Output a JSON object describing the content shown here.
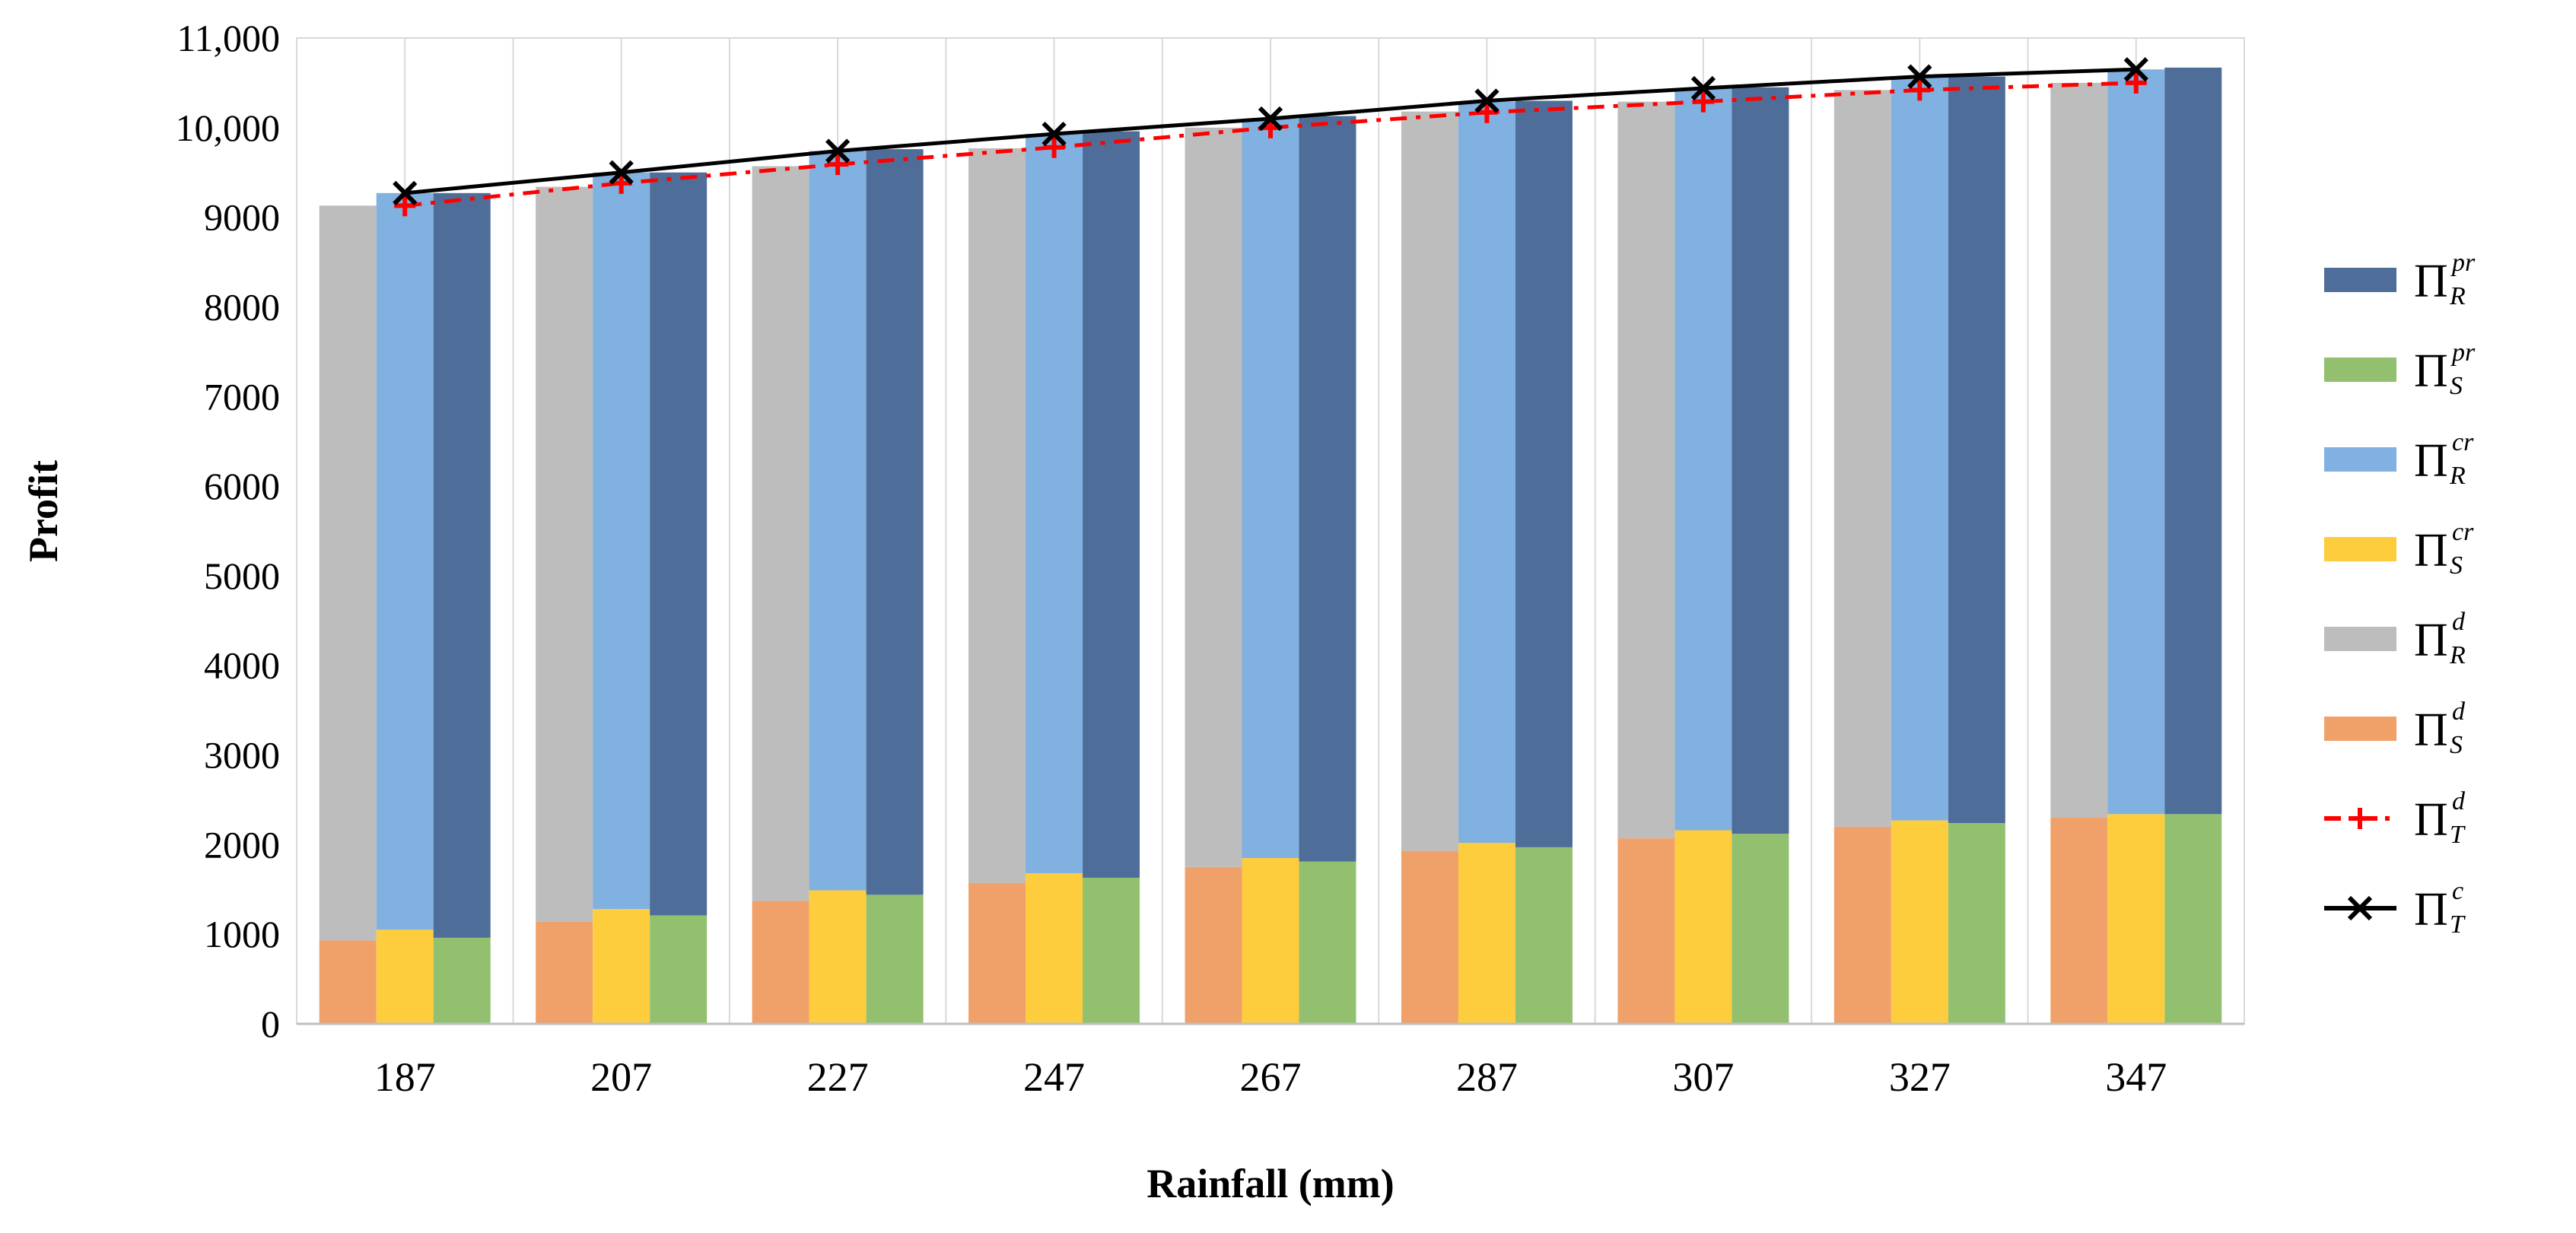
{
  "chart_data": {
    "type": "bar",
    "title": "",
    "xlabel": "Rainfall (mm)",
    "ylabel": "Profit",
    "ylim": [
      0,
      11000
    ],
    "yticks": [
      "0",
      "1000",
      "2000",
      "3000",
      "4000",
      "5000",
      "6000",
      "7000",
      "8000",
      "9000",
      "10,000",
      "11,000"
    ],
    "ytick_values": [
      0,
      1000,
      2000,
      3000,
      4000,
      5000,
      6000,
      7000,
      8000,
      9000,
      10000,
      11000
    ],
    "categories": [
      "187",
      "207",
      "227",
      "247",
      "267",
      "287",
      "307",
      "327",
      "347"
    ],
    "grid": "vertical gridlines at every half category",
    "legend_position": "right",
    "stacked_groups": [
      {
        "name": "d",
        "segments": [
          {
            "legend_index": 5,
            "values": [
              930,
              1140,
              1370,
              1570,
              1750,
              1930,
              2070,
              2200,
              2300
            ]
          },
          {
            "legend_index": 4,
            "values": [
              8200,
              8200,
              8200,
              8200,
              8250,
              8250,
              8220,
              8220,
              8200
            ]
          }
        ]
      },
      {
        "name": "cr",
        "segments": [
          {
            "legend_index": 3,
            "values": [
              1050,
              1280,
              1490,
              1680,
              1850,
              2020,
              2160,
              2270,
              2340
            ]
          },
          {
            "legend_index": 2,
            "values": [
              8220,
              8220,
              8250,
              8250,
              8250,
              8270,
              8280,
              8300,
              8310
            ]
          }
        ]
      },
      {
        "name": "pr",
        "segments": [
          {
            "legend_index": 1,
            "values": [
              960,
              1210,
              1440,
              1630,
              1810,
              1970,
              2120,
              2240,
              2340
            ]
          },
          {
            "legend_index": 0,
            "values": [
              8310,
              8290,
              8320,
              8330,
              8320,
              8330,
              8330,
              8330,
              8330
            ]
          }
        ]
      }
    ],
    "lines": [
      {
        "legend_index": 6,
        "values": [
          9130,
          9380,
          9590,
          9780,
          10000,
          10170,
          10290,
          10420,
          10500
        ]
      },
      {
        "legend_index": 7,
        "values": [
          9270,
          9500,
          9740,
          9930,
          10100,
          10300,
          10440,
          10570,
          10650
        ]
      }
    ],
    "legend": [
      {
        "sym": "Π",
        "sup": "pr",
        "sub": "R",
        "kind": "bar",
        "color": "#4e6e99"
      },
      {
        "sym": "Π",
        "sup": "pr",
        "sub": "S",
        "kind": "bar",
        "color": "#92c06f"
      },
      {
        "sym": "Π",
        "sup": "cr",
        "sub": "R",
        "kind": "bar",
        "color": "#80b1e0"
      },
      {
        "sym": "Π",
        "sup": "cr",
        "sub": "S",
        "kind": "bar",
        "color": "#fecd3d"
      },
      {
        "sym": "Π",
        "sup": "d",
        "sub": "R",
        "kind": "bar",
        "color": "#bdbdbd"
      },
      {
        "sym": "Π",
        "sup": "d",
        "sub": "S",
        "kind": "bar",
        "color": "#f0a16a"
      },
      {
        "sym": "Π",
        "sup": "d",
        "sub": "T",
        "kind": "line-dashdot-plus",
        "color": "#ff0000"
      },
      {
        "sym": "Π",
        "sup": "c",
        "sub": "T",
        "kind": "line-solid-x",
        "color": "#000000"
      }
    ]
  }
}
